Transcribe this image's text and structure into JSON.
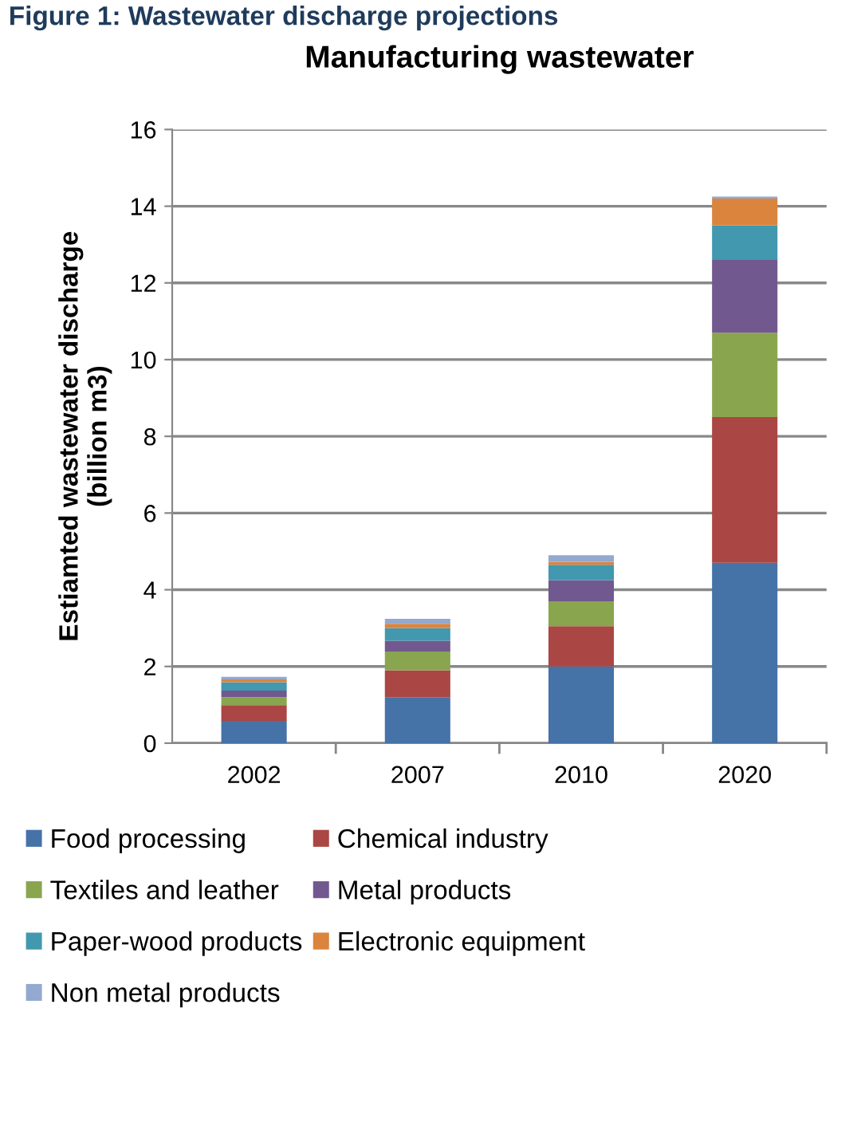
{
  "chart_data": {
    "type": "bar",
    "stacked": true,
    "title": "Manufacturing wastewater",
    "ylabel": "Estiamted wastewater discharge\n(billion m3)",
    "annotations": [
      "Figure 1: Wastewater discharge projections"
    ],
    "categories": [
      "2002",
      "2007",
      "2010",
      "2020"
    ],
    "series": [
      {
        "name": "Food processing",
        "color": "#4572a7",
        "values": [
          0.58,
          1.2,
          2.0,
          4.7
        ]
      },
      {
        "name": "Chemical industry",
        "color": "#aa4643",
        "values": [
          0.41,
          0.7,
          1.05,
          3.8
        ]
      },
      {
        "name": "Textiles and leather",
        "color": "#89a54e",
        "values": [
          0.21,
          0.49,
          0.65,
          2.2
        ]
      },
      {
        "name": "Metal products",
        "color": "#71588f",
        "values": [
          0.17,
          0.28,
          0.55,
          1.9
        ]
      },
      {
        "name": "Paper-wood products",
        "color": "#4198af",
        "values": [
          0.22,
          0.33,
          0.4,
          0.9
        ]
      },
      {
        "name": "Electronic equipment",
        "color": "#db843d",
        "values": [
          0.07,
          0.11,
          0.08,
          0.7
        ]
      },
      {
        "name": "Non metal products",
        "color": "#93a9cf",
        "values": [
          0.07,
          0.13,
          0.17,
          0.05
        ]
      }
    ],
    "ylim": [
      0,
      16
    ],
    "yticks": [
      0,
      2,
      4,
      6,
      8,
      10,
      12,
      14,
      16
    ],
    "grid": "y",
    "legend": "bottom"
  }
}
